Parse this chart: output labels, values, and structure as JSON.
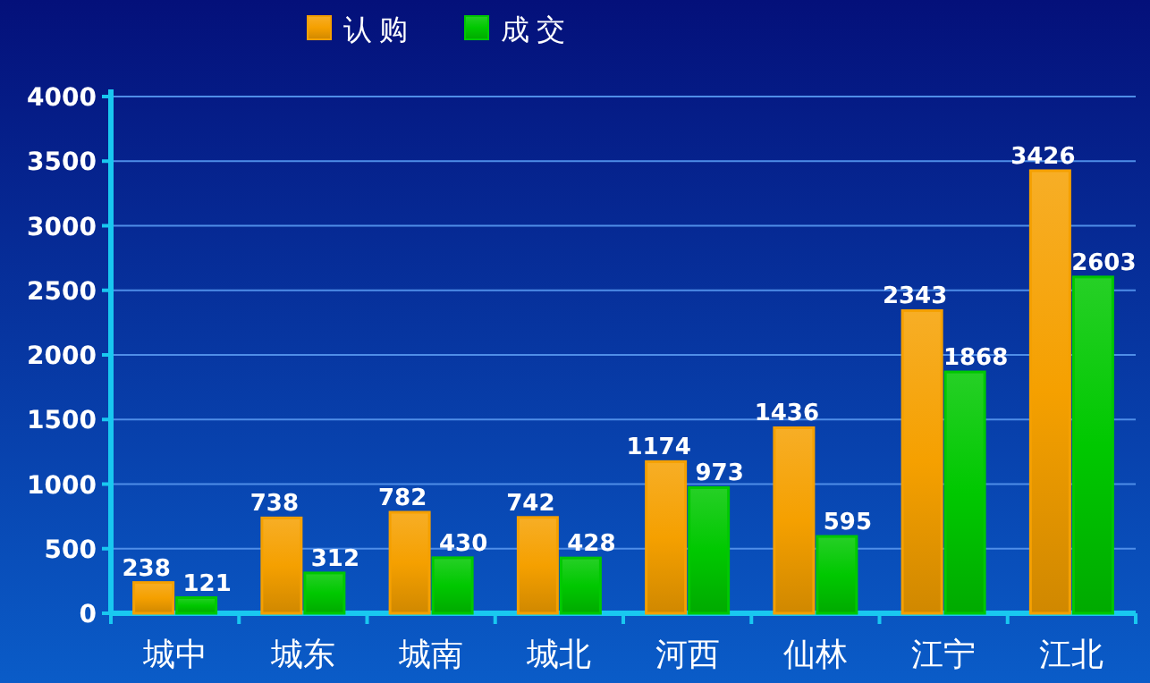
{
  "chart_data": {
    "type": "bar",
    "categories": [
      "城中",
      "城东",
      "城南",
      "城北",
      "河西",
      "仙林",
      "江宁",
      "江北"
    ],
    "series": [
      {
        "name": "认购",
        "color": "#f5a000",
        "values": [
          238,
          738,
          782,
          742,
          1174,
          1436,
          2343,
          3426
        ]
      },
      {
        "name": "成交",
        "color": "#00c800",
        "values": [
          121,
          312,
          430,
          428,
          973,
          595,
          1868,
          2603
        ]
      }
    ],
    "ylim": [
      0,
      4000
    ],
    "yticks": [
      0,
      500,
      1000,
      1500,
      2000,
      2500,
      3000,
      3500,
      4000
    ],
    "grid": "y",
    "legend": "top",
    "data_labels": true
  }
}
